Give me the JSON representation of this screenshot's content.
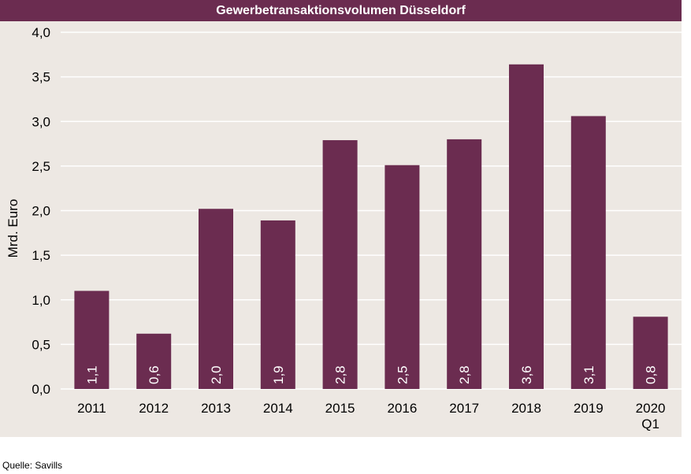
{
  "chart_data": {
    "type": "bar",
    "title": "Gewerbetransaktionsvolumen Düsseldorf",
    "ylabel": "Mrd. Euro",
    "xlabel": "",
    "categories": [
      [
        "2011"
      ],
      [
        "2012"
      ],
      [
        "2013"
      ],
      [
        "2014"
      ],
      [
        "2015"
      ],
      [
        "2016"
      ],
      [
        "2017"
      ],
      [
        "2018"
      ],
      [
        "2019"
      ],
      [
        "2020",
        "Q1"
      ]
    ],
    "values": [
      1.1,
      0.62,
      2.02,
      1.89,
      2.79,
      2.51,
      2.8,
      3.64,
      3.06,
      0.81
    ],
    "data_labels": [
      "1,1",
      "0,6",
      "2,0",
      "1,9",
      "2,8",
      "2,5",
      "2,8",
      "3,6",
      "3,1",
      "0,8"
    ],
    "y_ticks": [
      "0,0",
      "0,5",
      "1,0",
      "1,5",
      "2,0",
      "2,5",
      "3,0",
      "3,5",
      "4,0"
    ],
    "ylim": [
      0,
      4
    ],
    "grid": true,
    "colors": {
      "bar": "#6b2c50",
      "background": "#ede8e3",
      "title_bar": "#6b2c50",
      "grid": "#ffffff"
    }
  },
  "source": "Quelle: Savills"
}
